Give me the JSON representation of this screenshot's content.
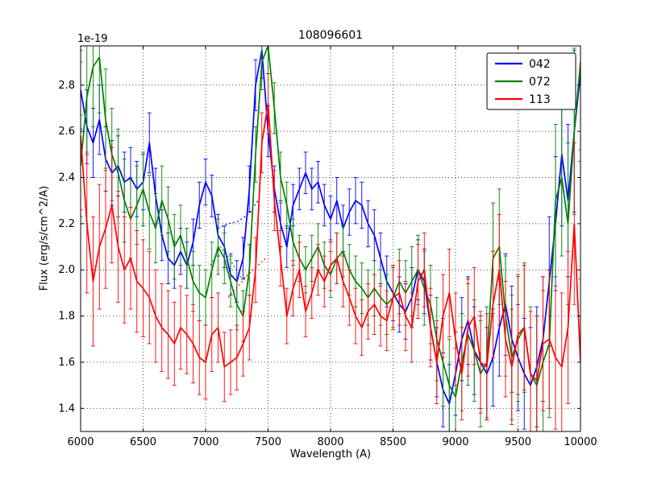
{
  "chart_data": {
    "type": "line",
    "title": "108096601",
    "xlabel": "Wavelength (A)",
    "ylabel": "Flux (erg/s/cm^2/A)",
    "offset_text": "1e-19",
    "xlim": [
      6000,
      10000
    ],
    "ylim": [
      1.3,
      2.97
    ],
    "xticks": [
      6000,
      6500,
      7000,
      7500,
      8000,
      8500,
      9000,
      9500,
      10000
    ],
    "yticks": [
      1.4,
      1.6,
      1.8,
      2.0,
      2.2,
      2.4,
      2.6,
      2.8
    ],
    "grid": true,
    "legend_position": "upper right",
    "x_start": 6000,
    "x_step": 50,
    "series": [
      {
        "name": "042",
        "color": "#0000ff",
        "values": [
          2.78,
          2.62,
          2.55,
          2.65,
          2.48,
          2.42,
          2.45,
          2.38,
          2.4,
          2.35,
          2.38,
          2.55,
          2.32,
          2.15,
          2.05,
          2.02,
          2.08,
          2.02,
          2.12,
          2.28,
          2.38,
          2.32,
          2.15,
          2.1,
          1.98,
          1.95,
          2.05,
          2.35,
          2.8,
          2.95,
          2.6,
          2.35,
          2.2,
          2.1,
          2.28,
          2.35,
          2.42,
          2.35,
          2.38,
          2.28,
          2.22,
          2.3,
          2.18,
          2.25,
          2.3,
          2.28,
          2.2,
          2.15,
          2.05,
          1.95,
          1.9,
          1.85,
          1.82,
          1.88,
          2.0,
          1.95,
          1.75,
          1.6,
          1.48,
          1.42,
          1.55,
          1.7,
          1.78,
          1.65,
          1.6,
          1.55,
          1.62,
          1.75,
          1.85,
          1.7,
          1.62,
          1.55,
          1.5,
          1.58,
          1.7,
          1.95,
          2.2,
          2.5,
          2.3,
          2.6,
          2.85
        ],
        "errors": [
          0.17,
          0.16,
          0.15,
          0.15,
          0.14,
          0.14,
          0.13,
          0.13,
          0.13,
          0.12,
          0.12,
          0.13,
          0.12,
          0.11,
          0.11,
          0.1,
          0.1,
          0.1,
          0.1,
          0.1,
          0.1,
          0.09,
          0.09,
          0.09,
          0.09,
          0.09,
          0.09,
          0.1,
          0.11,
          0.12,
          0.11,
          0.1,
          0.1,
          0.09,
          0.09,
          0.09,
          0.09,
          0.09,
          0.09,
          0.09,
          0.1,
          0.1,
          0.1,
          0.1,
          0.1,
          0.1,
          0.1,
          0.11,
          0.11,
          0.11,
          0.12,
          0.12,
          0.12,
          0.13,
          0.13,
          0.14,
          0.14,
          0.15,
          0.16,
          0.17,
          0.18,
          0.18,
          0.19,
          0.19,
          0.2,
          0.2,
          0.21,
          0.21,
          0.22,
          0.23,
          0.23,
          0.24,
          0.25,
          0.26,
          0.27,
          0.28,
          0.29,
          0.31,
          0.33,
          0.35,
          0.38
        ],
        "dotted": [
          [
            7100,
            2.18
          ],
          [
            7180,
            2.2
          ],
          [
            7260,
            2.21
          ],
          [
            7340,
            2.24
          ],
          [
            7420,
            2.3
          ]
        ]
      },
      {
        "name": "072",
        "color": "#008000",
        "values": [
          2.45,
          2.75,
          2.88,
          2.92,
          2.65,
          2.5,
          2.42,
          2.3,
          2.22,
          2.28,
          2.35,
          2.25,
          2.18,
          2.3,
          2.22,
          2.1,
          2.15,
          2.05,
          1.95,
          1.9,
          1.88,
          2.0,
          2.1,
          2.05,
          1.95,
          1.85,
          1.8,
          2.0,
          2.5,
          2.9,
          2.97,
          2.7,
          2.4,
          2.28,
          2.12,
          2.05,
          2.0,
          2.05,
          2.1,
          2.02,
          1.98,
          2.05,
          2.08,
          2.0,
          1.95,
          1.92,
          1.88,
          1.92,
          1.88,
          1.85,
          1.88,
          1.95,
          1.9,
          1.95,
          2.0,
          1.92,
          1.85,
          1.7,
          1.6,
          1.5,
          1.45,
          1.6,
          1.72,
          1.65,
          1.55,
          1.6,
          2.05,
          2.1,
          1.8,
          1.62,
          1.7,
          1.75,
          1.55,
          1.5,
          1.6,
          1.68,
          2.3,
          2.4,
          2.2,
          2.6,
          2.9
        ],
        "errors": [
          0.22,
          0.24,
          0.26,
          0.24,
          0.22,
          0.2,
          0.19,
          0.18,
          0.17,
          0.17,
          0.16,
          0.16,
          0.15,
          0.15,
          0.14,
          0.14,
          0.13,
          0.13,
          0.13,
          0.12,
          0.12,
          0.12,
          0.12,
          0.11,
          0.11,
          0.11,
          0.11,
          0.11,
          0.12,
          0.12,
          0.12,
          0.11,
          0.11,
          0.1,
          0.1,
          0.1,
          0.1,
          0.1,
          0.1,
          0.1,
          0.1,
          0.11,
          0.11,
          0.11,
          0.11,
          0.11,
          0.12,
          0.12,
          0.12,
          0.13,
          0.13,
          0.14,
          0.14,
          0.15,
          0.15,
          0.16,
          0.17,
          0.18,
          0.19,
          0.2,
          0.21,
          0.21,
          0.22,
          0.22,
          0.23,
          0.24,
          0.24,
          0.25,
          0.26,
          0.27,
          0.27,
          0.28,
          0.29,
          0.3,
          0.31,
          0.32,
          0.33,
          0.34,
          0.35,
          0.36,
          0.38
        ],
        "dotted": [
          [
            7040,
            2.02
          ],
          [
            7120,
            2.1
          ],
          [
            7200,
            2.04
          ],
          [
            7280,
            1.97
          ],
          [
            7360,
            1.96
          ]
        ]
      },
      {
        "name": "113",
        "color": "#ff0000",
        "values": [
          2.58,
          2.2,
          1.95,
          2.1,
          2.18,
          2.28,
          2.1,
          2.0,
          2.05,
          1.95,
          1.92,
          1.88,
          1.8,
          1.75,
          1.72,
          1.68,
          1.75,
          1.72,
          1.68,
          1.62,
          1.6,
          1.72,
          1.75,
          1.58,
          1.6,
          1.62,
          1.68,
          1.75,
          2.0,
          2.55,
          2.72,
          2.3,
          2.05,
          1.8,
          1.92,
          2.0,
          1.82,
          1.9,
          2.0,
          1.95,
          2.02,
          2.05,
          1.95,
          1.88,
          1.8,
          1.75,
          1.82,
          1.85,
          1.8,
          1.78,
          1.88,
          1.9,
          1.8,
          1.75,
          1.95,
          2.0,
          1.75,
          1.6,
          1.8,
          1.9,
          1.7,
          1.55,
          1.75,
          1.8,
          1.6,
          1.58,
          1.85,
          2.0,
          1.7,
          1.58,
          1.72,
          1.75,
          1.55,
          1.52,
          1.68,
          1.7,
          1.62,
          1.58,
          1.75,
          2.2,
          1.6
        ],
        "errors": [
          0.32,
          0.3,
          0.28,
          0.27,
          0.26,
          0.25,
          0.24,
          0.23,
          0.22,
          0.22,
          0.21,
          0.2,
          0.2,
          0.19,
          0.19,
          0.18,
          0.18,
          0.17,
          0.17,
          0.16,
          0.16,
          0.16,
          0.15,
          0.15,
          0.14,
          0.14,
          0.14,
          0.14,
          0.14,
          0.13,
          0.13,
          0.13,
          0.12,
          0.12,
          0.12,
          0.12,
          0.11,
          0.11,
          0.11,
          0.11,
          0.11,
          0.11,
          0.11,
          0.12,
          0.12,
          0.12,
          0.12,
          0.13,
          0.13,
          0.13,
          0.14,
          0.14,
          0.15,
          0.15,
          0.16,
          0.16,
          0.17,
          0.18,
          0.18,
          0.19,
          0.2,
          0.2,
          0.21,
          0.21,
          0.22,
          0.23,
          0.23,
          0.24,
          0.25,
          0.25,
          0.26,
          0.27,
          0.27,
          0.28,
          0.29,
          0.3,
          0.31,
          0.32,
          0.33,
          0.35,
          0.36
        ],
        "dotted": [
          [
            7180,
            1.88
          ],
          [
            7260,
            1.93
          ],
          [
            7340,
            1.98
          ],
          [
            7420,
            2.02
          ],
          [
            7480,
            2.05
          ]
        ]
      }
    ]
  }
}
